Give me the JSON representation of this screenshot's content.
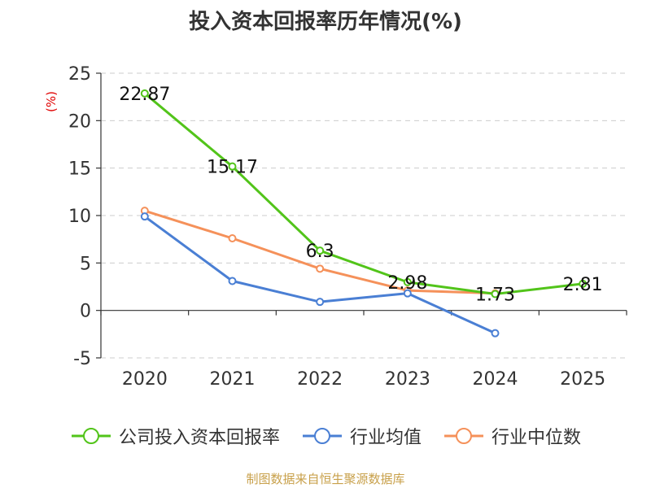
{
  "title": "投入资本回报率历年情况(%)",
  "unit_label": "(%)",
  "source": "制图数据来自恒生聚源数据库",
  "chart_data": {
    "type": "line",
    "categories": [
      "2020",
      "2021",
      "2022",
      "2023",
      "2024",
      "2025"
    ],
    "ylim": [
      -5,
      25
    ],
    "yticks": [
      -5,
      0,
      5,
      10,
      15,
      20,
      25
    ],
    "grid": true,
    "legend_position": "bottom",
    "series": [
      {
        "name": "公司投入资本回报率",
        "color": "#52c41a",
        "values": [
          22.87,
          15.17,
          6.3,
          2.98,
          1.73,
          2.81
        ],
        "labels": [
          "22.87",
          "15.17",
          "6.3",
          "2.98",
          "1.73",
          "2.81"
        ]
      },
      {
        "name": "行业均值",
        "color": "#4a7fd4",
        "values": [
          9.9,
          3.1,
          0.9,
          1.8,
          -2.4,
          null
        ]
      },
      {
        "name": "行业中位数",
        "color": "#f5915a",
        "values": [
          10.5,
          7.6,
          4.4,
          2.1,
          1.8,
          null
        ]
      }
    ]
  }
}
